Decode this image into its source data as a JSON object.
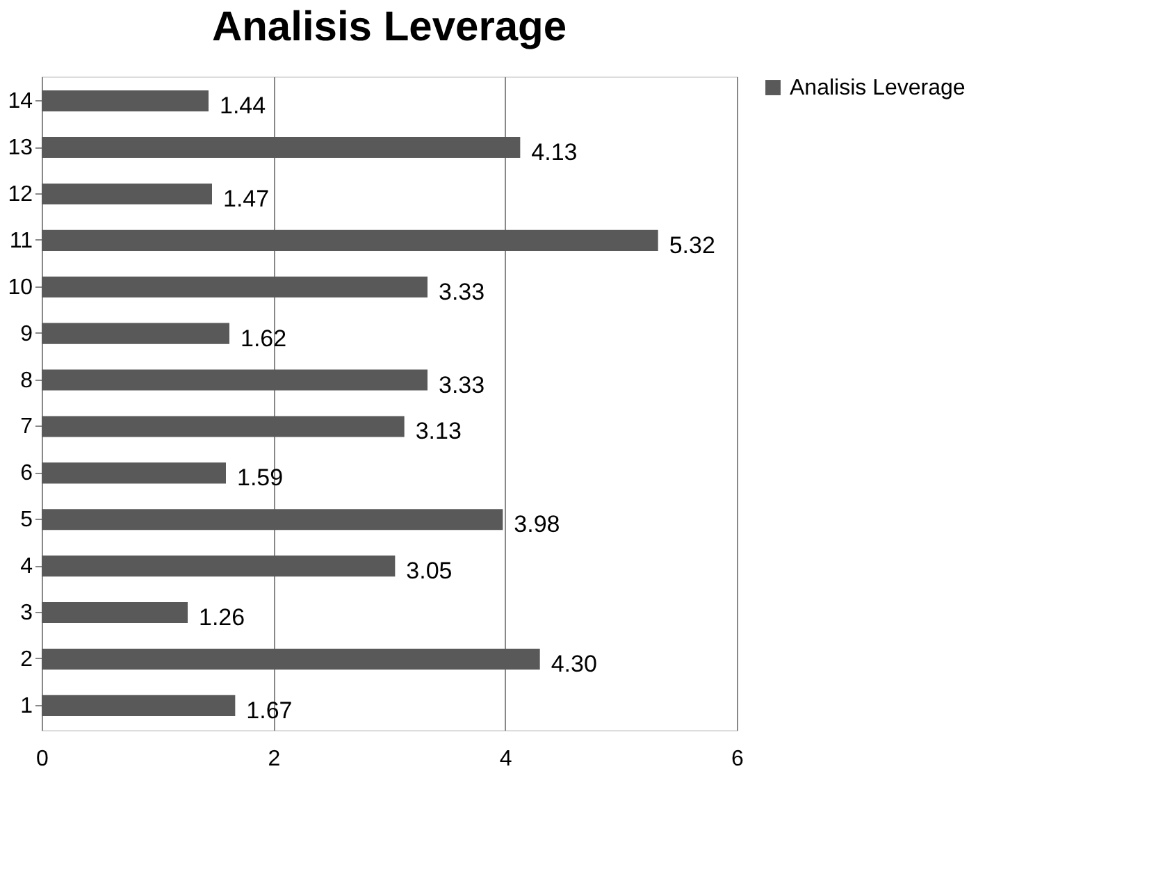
{
  "chart_data": {
    "type": "bar",
    "orientation": "horizontal",
    "title": "Analisis Leverage",
    "categories": [
      "14",
      "13",
      "12",
      "11",
      "10",
      "9",
      "8",
      "7",
      "6",
      "5",
      "4",
      "3",
      "2",
      "1"
    ],
    "series": [
      {
        "name": "Analisis Leverage",
        "color": "#595959",
        "values": [
          1.44,
          4.13,
          1.47,
          5.32,
          3.33,
          1.62,
          3.33,
          3.13,
          1.59,
          3.98,
          3.05,
          1.26,
          4.3,
          1.67
        ],
        "value_labels": [
          "1.44",
          "4.13",
          "1.47",
          "5.32",
          "3.33",
          "1.62",
          "3.33",
          "3.13",
          "1.59",
          "3.98",
          "3.05",
          "1.26",
          "4.30",
          "1.67"
        ]
      }
    ],
    "xlim": [
      0,
      6
    ],
    "xticks": [
      {
        "value": 0,
        "label": "0"
      },
      {
        "value": 2,
        "label": "2"
      },
      {
        "value": 4,
        "label": "4"
      },
      {
        "value": 6,
        "label": "6"
      }
    ],
    "grid": "x",
    "legend": "right"
  }
}
